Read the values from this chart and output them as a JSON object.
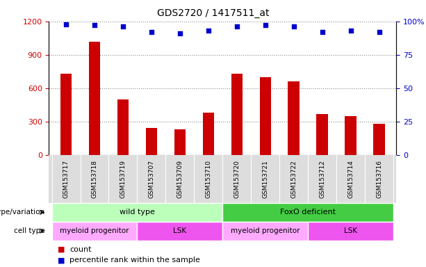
{
  "title": "GDS2720 / 1417511_at",
  "samples": [
    "GSM153717",
    "GSM153718",
    "GSM153719",
    "GSM153707",
    "GSM153709",
    "GSM153710",
    "GSM153720",
    "GSM153721",
    "GSM153722",
    "GSM153712",
    "GSM153714",
    "GSM153716"
  ],
  "counts": [
    730,
    1020,
    500,
    245,
    230,
    380,
    730,
    700,
    660,
    370,
    350,
    280
  ],
  "percentile_ranks": [
    98,
    97,
    96,
    92,
    91,
    93,
    96,
    97,
    96,
    92,
    93,
    92
  ],
  "ylim_left": [
    0,
    1200
  ],
  "ylim_right": [
    0,
    100
  ],
  "yticks_left": [
    0,
    300,
    600,
    900,
    1200
  ],
  "yticks_right": [
    0,
    25,
    50,
    75,
    100
  ],
  "bar_color": "#cc0000",
  "dot_color": "#0000cc",
  "genotype_groups": [
    {
      "label": "wild type",
      "start": 0,
      "end": 6,
      "color": "#bbffbb"
    },
    {
      "label": "FoxO deficient",
      "start": 6,
      "end": 12,
      "color": "#44cc44"
    }
  ],
  "cell_type_groups": [
    {
      "label": "myeloid progenitor",
      "start": 0,
      "end": 3,
      "color": "#ffaaff"
    },
    {
      "label": "LSK",
      "start": 3,
      "end": 6,
      "color": "#ee55ee"
    },
    {
      "label": "myeloid progenitor",
      "start": 6,
      "end": 9,
      "color": "#ffaaff"
    },
    {
      "label": "LSK",
      "start": 9,
      "end": 12,
      "color": "#ee55ee"
    }
  ],
  "genotype_row_label": "genotype/variation",
  "cell_type_row_label": "cell type",
  "legend_count_label": "count",
  "legend_percentile_label": "percentile rank within the sample",
  "tick_label_color_left": "#cc0000",
  "tick_label_color_right": "#0000cc",
  "xtick_bg_color": "#dddddd",
  "grid_color": "#888888"
}
